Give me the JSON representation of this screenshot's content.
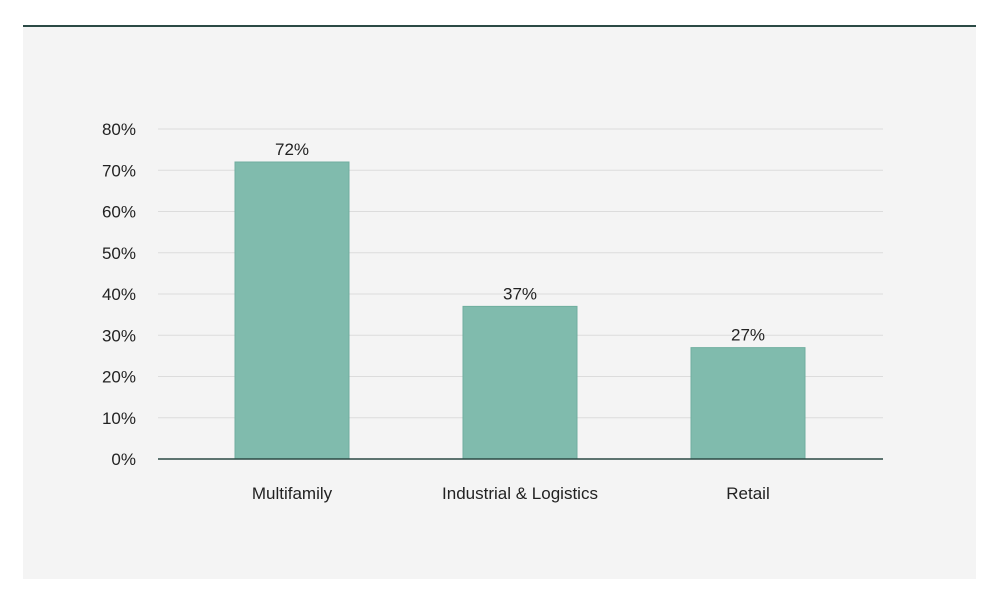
{
  "chart_data": {
    "type": "bar",
    "categories": [
      "Multifamily",
      "Industrial & Logistics",
      "Retail"
    ],
    "values": [
      72,
      37,
      27
    ],
    "value_labels": [
      "72%",
      "37%",
      "27%"
    ],
    "y_ticks": [
      "0%",
      "10%",
      "20%",
      "30%",
      "40%",
      "50%",
      "60%",
      "70%",
      "80%"
    ],
    "ylim": [
      0,
      80
    ],
    "y_unit": "%",
    "grid": true,
    "legend": "none",
    "title": "",
    "xlabel": "",
    "ylabel": ""
  },
  "colors": {
    "bar": "#80bbad",
    "bar_edge": "#6fae9f",
    "grid": "#dcdcdc",
    "axis": "#2b4a45",
    "panel_bg": "#f4f4f4",
    "panel_rule": "#2b4a45"
  }
}
